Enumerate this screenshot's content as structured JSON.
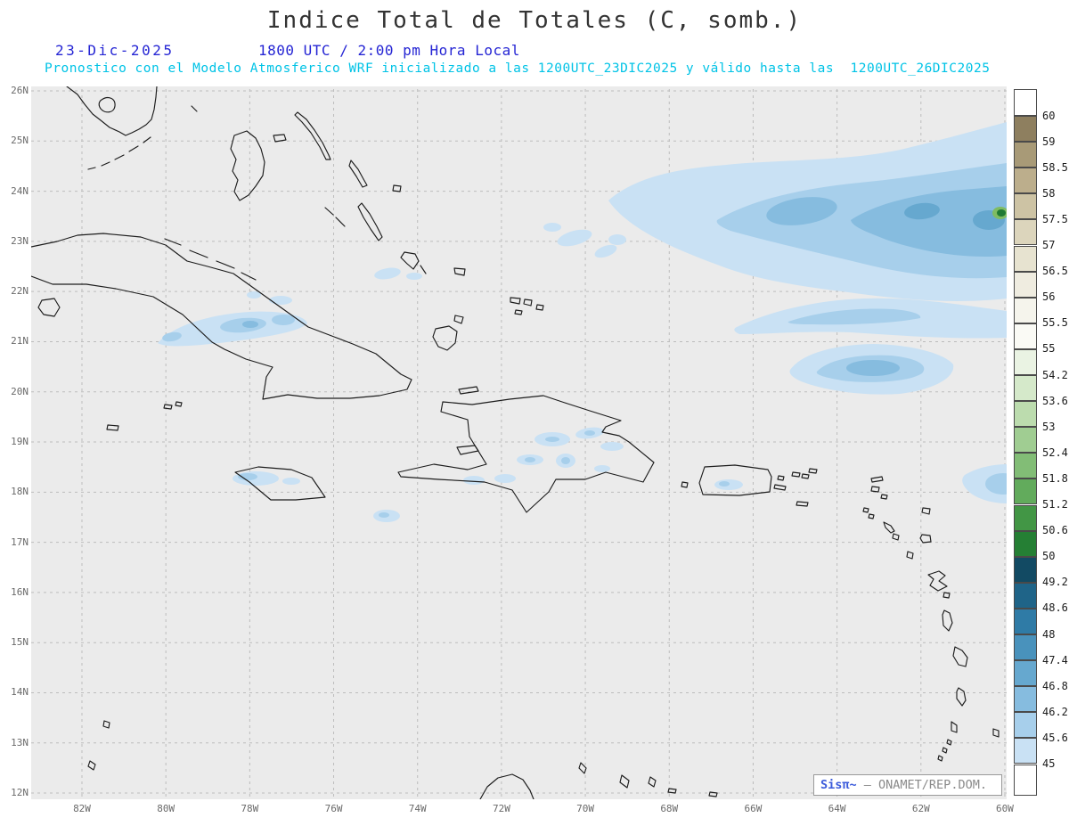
{
  "header": {
    "title": "Indice Total de Totales (C, somb.)",
    "date": "23-Dic-2025",
    "time_line": "1800 UTC / 2:00 pm Hora Local",
    "forecast_line": "Pronostico con el Modelo Atmosferico WRF inicializado a las 1200UTC_23DIC2025 y válido hasta las  1200UTC_26DIC2025"
  },
  "map": {
    "lat_labels": [
      "26N",
      "25N",
      "24N",
      "23N",
      "22N",
      "21N",
      "20N",
      "19N",
      "18N",
      "17N",
      "16N",
      "15N",
      "14N",
      "13N",
      "12N"
    ],
    "lon_labels": [
      "82W",
      "80W",
      "78W",
      "76W",
      "74W",
      "72W",
      "70W",
      "68W",
      "66W",
      "64W",
      "62W",
      "60W"
    ]
  },
  "colorbar": {
    "labels": [
      "60",
      "59",
      "58.5",
      "58",
      "57.5",
      "57",
      "56.5",
      "56",
      "55.5",
      "55",
      "54.2",
      "53.6",
      "53",
      "52.4",
      "51.8",
      "51.2",
      "50.6",
      "50",
      "49.2",
      "48.6",
      "48",
      "47.4",
      "46.8",
      "46.2",
      "45.6",
      "45"
    ],
    "segment_colors": [
      "#8e7f5f",
      "#a89a77",
      "#bcae8c",
      "#cdc3a4",
      "#dcd5bc",
      "#e7e3d0",
      "#efece0",
      "#f5f4ec",
      "#fafaf5",
      "#eaf3e3",
      "#d5e9ca",
      "#bcdcae",
      "#a0cd92",
      "#82bd76",
      "#62ab5c",
      "#429645",
      "#257f34",
      "#124a63",
      "#1f6488",
      "#2f7ba6",
      "#4992bc",
      "#66a8cf",
      "#86bcdf",
      "#a7cfeb",
      "#c9e1f4"
    ],
    "above_color": "#ffffff",
    "below_color": "#ffffff"
  },
  "branding": {
    "logo": "Sisπ~",
    "org": "— ONAMET/REP.DOM."
  },
  "palette": {
    "text_blue": "#2525d4",
    "text_cyan": "#00c3e6",
    "brand_blue": "#3b5bdb",
    "brand_gray": "#8a8a8a",
    "sea_bg": "#ebebeb",
    "grid": "#bcbcbc",
    "coast": "#1c1c1c",
    "shade1": "#c9e1f4",
    "shade2": "#a7cfeb",
    "shade3": "#86bcdf",
    "shade4": "#66a8cf",
    "green_outer": "#7fbc63",
    "green_inner": "#1f7a33"
  },
  "chart_data": {
    "type": "heatmap",
    "title": "Indice Total de Totales (C, somb.)",
    "units": "C",
    "valid_time": "1800 UTC 23-Dic-2025",
    "scale_values": [
      45,
      45.6,
      46.2,
      46.8,
      47.4,
      48,
      48.6,
      49.2,
      50,
      50.6,
      51.2,
      51.8,
      52.4,
      53,
      53.6,
      54.2,
      55,
      55.5,
      56,
      56.5,
      57,
      57.5,
      58,
      58.5,
      59,
      60
    ],
    "lat_range": [
      12,
      26
    ],
    "lon_range_w": [
      83,
      60
    ]
  }
}
